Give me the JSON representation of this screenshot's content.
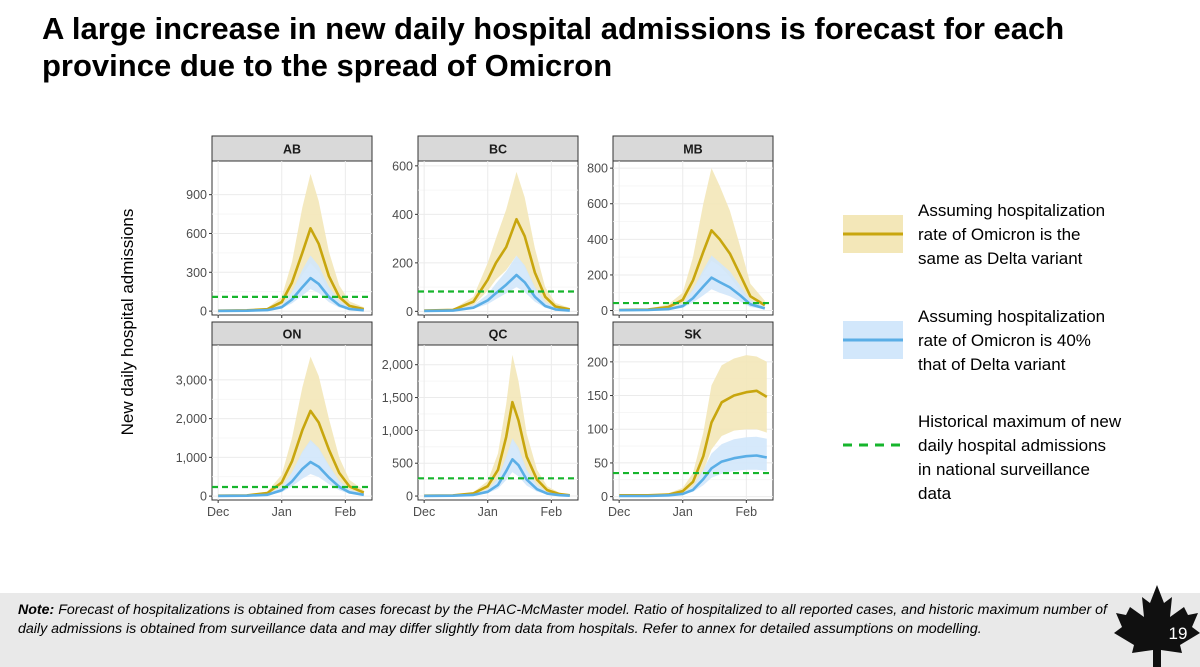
{
  "slide": {
    "title": "A large increase in new daily hospital admissions is forecast for each province due to the spread of Omicron",
    "page_number": "19"
  },
  "chart_data": {
    "type": "line",
    "ylabel": "New daily hospital admissions",
    "x_ticks": [
      "Dec",
      "Jan",
      "Feb"
    ],
    "x_range": [
      "2021-11-28",
      "2022-02-14"
    ],
    "colors": {
      "same_as_delta": "#c8a60e",
      "same_as_delta_band": "#f3e7b8",
      "forty_percent": "#5aaee6",
      "forty_percent_band": "#d2e7fb",
      "historical_max": "#16b52c"
    },
    "legend": [
      {
        "key": "same_as_delta",
        "label": "Assuming hospitalization\nrate of Omicron is the\nsame as Delta variant"
      },
      {
        "key": "forty_percent",
        "label": "Assuming hospitalization\nrate of Omicron is 40%\nthat of Delta variant"
      },
      {
        "key": "historical_max",
        "label": "Historical maximum of new\ndaily hospital admissions\nin national surveillance\ndata"
      }
    ],
    "panels": [
      {
        "province": "AB",
        "ylim": [
          -30,
          1160
        ],
        "y_ticks": [
          0,
          300,
          600,
          900
        ],
        "y_tick_labels": [
          "0",
          "300",
          "600",
          "900"
        ],
        "historical_max": 110,
        "same_as_delta": {
          "x": [
            "2021-12-01",
            "2021-12-15",
            "2021-12-25",
            "2022-01-01",
            "2022-01-06",
            "2022-01-11",
            "2022-01-15",
            "2022-01-19",
            "2022-01-24",
            "2022-01-29",
            "2022-02-03",
            "2022-02-10"
          ],
          "median": [
            3,
            6,
            15,
            70,
            220,
            450,
            640,
            520,
            270,
            110,
            40,
            15
          ],
          "lower": [
            2,
            4,
            10,
            45,
            140,
            280,
            370,
            300,
            150,
            60,
            20,
            8
          ],
          "upper": [
            5,
            8,
            25,
            110,
            380,
            800,
            1060,
            850,
            460,
            200,
            75,
            30
          ]
        },
        "forty_percent": {
          "x": [
            "2021-12-01",
            "2021-12-15",
            "2021-12-25",
            "2022-01-01",
            "2022-01-06",
            "2022-01-11",
            "2022-01-15",
            "2022-01-19",
            "2022-01-24",
            "2022-01-29",
            "2022-02-03",
            "2022-02-10"
          ],
          "median": [
            2,
            3,
            8,
            30,
            90,
            185,
            255,
            210,
            110,
            45,
            16,
            6
          ],
          "lower": [
            1,
            2,
            5,
            20,
            60,
            120,
            170,
            140,
            70,
            28,
            10,
            4
          ],
          "upper": [
            3,
            4,
            12,
            45,
            150,
            320,
            430,
            350,
            190,
            80,
            30,
            12
          ]
        }
      },
      {
        "province": "BC",
        "ylim": [
          -15,
          620
        ],
        "y_ticks": [
          0,
          200,
          400,
          600
        ],
        "y_tick_labels": [
          "0",
          "200",
          "400",
          "600"
        ],
        "historical_max": 82,
        "same_as_delta": {
          "x": [
            "2021-12-01",
            "2021-12-15",
            "2021-12-25",
            "2022-01-01",
            "2022-01-05",
            "2022-01-10",
            "2022-01-15",
            "2022-01-19",
            "2022-01-24",
            "2022-01-29",
            "2022-02-03",
            "2022-02-10"
          ],
          "median": [
            3,
            6,
            40,
            130,
            200,
            265,
            380,
            310,
            160,
            60,
            20,
            8
          ],
          "lower": [
            2,
            4,
            25,
            85,
            130,
            170,
            230,
            180,
            90,
            35,
            12,
            5
          ],
          "upper": [
            5,
            9,
            60,
            200,
            300,
            420,
            575,
            470,
            260,
            100,
            35,
            14
          ]
        },
        "forty_percent": {
          "x": [
            "2021-12-01",
            "2021-12-15",
            "2021-12-25",
            "2022-01-01",
            "2022-01-05",
            "2022-01-10",
            "2022-01-15",
            "2022-01-19",
            "2022-01-24",
            "2022-01-29",
            "2022-02-03",
            "2022-02-10"
          ],
          "median": [
            2,
            3,
            15,
            45,
            75,
            110,
            150,
            120,
            60,
            22,
            8,
            3
          ],
          "lower": [
            1,
            2,
            10,
            30,
            50,
            75,
            100,
            80,
            40,
            15,
            5,
            2
          ],
          "upper": [
            3,
            4,
            25,
            70,
            115,
            165,
            230,
            190,
            100,
            40,
            15,
            6
          ]
        }
      },
      {
        "province": "MB",
        "ylim": [
          -25,
          840
        ],
        "y_ticks": [
          0,
          200,
          400,
          600,
          800
        ],
        "y_tick_labels": [
          "0",
          "200",
          "400",
          "600",
          "800"
        ],
        "historical_max": 42,
        "same_as_delta": {
          "x": [
            "2021-12-01",
            "2021-12-15",
            "2021-12-25",
            "2022-01-01",
            "2022-01-06",
            "2022-01-11",
            "2022-01-15",
            "2022-01-19",
            "2022-01-24",
            "2022-01-29",
            "2022-02-03",
            "2022-02-10"
          ],
          "median": [
            3,
            6,
            20,
            60,
            170,
            330,
            450,
            400,
            320,
            200,
            80,
            30
          ],
          "lower": [
            2,
            4,
            12,
            40,
            110,
            210,
            280,
            250,
            190,
            110,
            45,
            15
          ],
          "upper": [
            5,
            9,
            35,
            100,
            300,
            600,
            800,
            700,
            560,
            360,
            150,
            55
          ]
        },
        "forty_percent": {
          "x": [
            "2021-12-01",
            "2021-12-15",
            "2021-12-25",
            "2022-01-01",
            "2022-01-06",
            "2022-01-11",
            "2022-01-15",
            "2022-01-19",
            "2022-01-24",
            "2022-01-29",
            "2022-02-03",
            "2022-02-10"
          ],
          "median": [
            2,
            3,
            8,
            25,
            70,
            135,
            185,
            160,
            130,
            85,
            35,
            12
          ],
          "lower": [
            1,
            2,
            5,
            15,
            45,
            85,
            120,
            100,
            80,
            50,
            20,
            7
          ],
          "upper": [
            3,
            4,
            12,
            40,
            120,
            230,
            310,
            270,
            220,
            140,
            60,
            22
          ]
        }
      },
      {
        "province": "ON",
        "ylim": [
          -100,
          3900
        ],
        "y_ticks": [
          0,
          1000,
          2000,
          3000
        ],
        "y_tick_labels": [
          "0",
          "1,000",
          "2,000",
          "3,000"
        ],
        "historical_max": 235,
        "same_as_delta": {
          "x": [
            "2021-12-01",
            "2021-12-15",
            "2021-12-25",
            "2022-01-01",
            "2022-01-06",
            "2022-01-11",
            "2022-01-15",
            "2022-01-19",
            "2022-01-24",
            "2022-01-29",
            "2022-02-03",
            "2022-02-10"
          ],
          "median": [
            10,
            20,
            80,
            350,
            900,
            1700,
            2200,
            1900,
            1200,
            600,
            250,
            90
          ],
          "lower": [
            6,
            14,
            55,
            240,
            600,
            1100,
            1400,
            1200,
            750,
            370,
            150,
            55
          ],
          "upper": [
            15,
            30,
            120,
            550,
            1500,
            2800,
            3600,
            3100,
            2000,
            1000,
            420,
            150
          ]
        },
        "forty_percent": {
          "x": [
            "2021-12-01",
            "2021-12-15",
            "2021-12-25",
            "2022-01-01",
            "2022-01-06",
            "2022-01-11",
            "2022-01-15",
            "2022-01-19",
            "2022-01-24",
            "2022-01-29",
            "2022-02-03",
            "2022-02-10"
          ],
          "median": [
            6,
            10,
            35,
            150,
            380,
            700,
            880,
            760,
            480,
            240,
            100,
            35
          ],
          "lower": [
            4,
            7,
            24,
            100,
            250,
            450,
            570,
            490,
            310,
            150,
            60,
            22
          ],
          "upper": [
            9,
            15,
            55,
            240,
            620,
            1150,
            1450,
            1250,
            800,
            400,
            170,
            60
          ]
        }
      },
      {
        "province": "QC",
        "ylim": [
          -60,
          2300
        ],
        "y_ticks": [
          0,
          500,
          1000,
          1500,
          2000
        ],
        "y_tick_labels": [
          "0",
          "500",
          "1,000",
          "1,500",
          "2,000"
        ],
        "historical_max": 270,
        "same_as_delta": {
          "x": [
            "2021-12-01",
            "2021-12-15",
            "2021-12-25",
            "2022-01-01",
            "2022-01-06",
            "2022-01-10",
            "2022-01-13",
            "2022-01-16",
            "2022-01-20",
            "2022-01-25",
            "2022-01-30",
            "2022-02-05",
            "2022-02-10"
          ],
          "median": [
            5,
            10,
            40,
            150,
            400,
            900,
            1430,
            1150,
            600,
            250,
            90,
            30,
            12
          ],
          "lower": [
            3,
            7,
            25,
            100,
            250,
            550,
            850,
            680,
            350,
            150,
            55,
            18,
            7
          ],
          "upper": [
            8,
            15,
            60,
            230,
            650,
            1400,
            2150,
            1750,
            950,
            400,
            150,
            50,
            20
          ]
        },
        "forty_percent": {
          "x": [
            "2021-12-01",
            "2021-12-15",
            "2021-12-25",
            "2022-01-01",
            "2022-01-06",
            "2022-01-10",
            "2022-01-13",
            "2022-01-16",
            "2022-01-20",
            "2022-01-25",
            "2022-01-30",
            "2022-02-05",
            "2022-02-10"
          ],
          "median": [
            3,
            5,
            18,
            65,
            170,
            380,
            560,
            470,
            250,
            105,
            38,
            13,
            5
          ],
          "lower": [
            2,
            3,
            12,
            43,
            110,
            245,
            365,
            300,
            160,
            68,
            25,
            8,
            3
          ],
          "upper": [
            5,
            8,
            28,
            100,
            270,
            600,
            880,
            740,
            400,
            170,
            62,
            21,
            8
          ]
        }
      },
      {
        "province": "SK",
        "ylim": [
          -5,
          225
        ],
        "y_ticks": [
          0,
          50,
          100,
          150,
          200
        ],
        "y_tick_labels": [
          "0",
          "50",
          "100",
          "150",
          "200"
        ],
        "historical_max": 35,
        "same_as_delta": {
          "x": [
            "2021-12-01",
            "2021-12-15",
            "2021-12-25",
            "2022-01-01",
            "2022-01-06",
            "2022-01-11",
            "2022-01-15",
            "2022-01-20",
            "2022-01-26",
            "2022-02-01",
            "2022-02-06",
            "2022-02-11"
          ],
          "median": [
            2,
            2,
            3,
            8,
            22,
            60,
            110,
            140,
            150,
            155,
            157,
            148
          ],
          "lower": [
            1,
            1,
            2,
            5,
            14,
            38,
            70,
            90,
            98,
            100,
            100,
            95
          ],
          "upper": [
            3,
            3,
            5,
            13,
            35,
            95,
            165,
            195,
            205,
            210,
            208,
            200
          ]
        },
        "forty_percent": {
          "x": [
            "2021-12-01",
            "2021-12-15",
            "2021-12-25",
            "2022-01-01",
            "2022-01-06",
            "2022-01-11",
            "2022-01-15",
            "2022-01-20",
            "2022-01-26",
            "2022-02-01",
            "2022-02-06",
            "2022-02-11"
          ],
          "median": [
            1,
            1,
            2,
            4,
            10,
            26,
            42,
            52,
            57,
            60,
            61,
            58
          ],
          "lower": [
            0,
            1,
            1,
            3,
            7,
            17,
            28,
            34,
            38,
            40,
            40,
            38
          ],
          "upper": [
            2,
            2,
            3,
            6,
            15,
            40,
            64,
            78,
            85,
            88,
            89,
            86
          ]
        }
      }
    ]
  },
  "note": {
    "label": "Note:",
    "text": " Forecast of hospitalizations is obtained from cases forecast by the PHAC-McMaster model. Ratio of hospitalized to all reported cases, and historic maximum number of daily admissions is obtained from surveillance data and may differ slightly from data from hospitals. Refer to annex for detailed assumptions on modelling."
  }
}
